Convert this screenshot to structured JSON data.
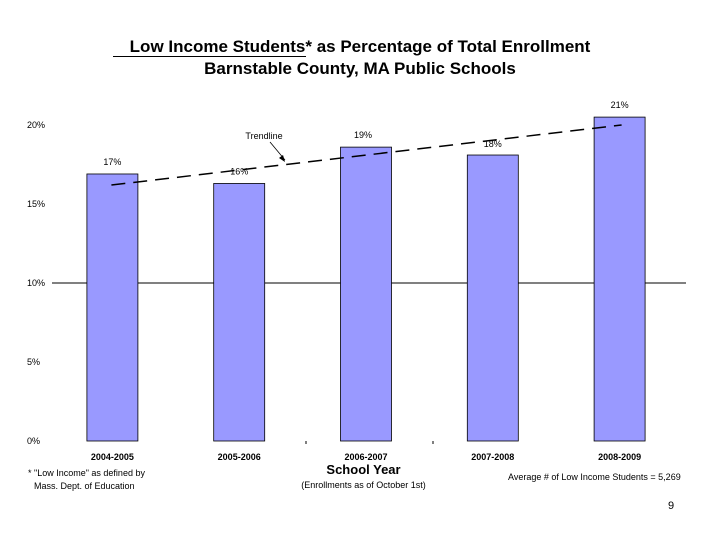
{
  "slide": {
    "title_line1_underlined": "Low Income Students*",
    "title_line1_rest": " as Percentage of Total Enrollment",
    "title_line2": "Barnstable County, MA Public Schools",
    "footnote_line1": "* \"Low Income\" as defined by",
    "footnote_line2": "Mass. Dept. of Education",
    "x_axis_subtitle": "(Enrollments as of October 1st)",
    "average_note": "Average # of Low Income Students = 5,269",
    "page_number": "9"
  },
  "colors": {
    "bar_fill": "#9999ff",
    "bar_stroke": "#000000",
    "trendline": "#000000",
    "gridline": "#000000"
  },
  "chart_data": {
    "type": "bar",
    "title": "Low Income Students* as Percentage of Total Enrollment",
    "subtitle": "Barnstable County, MA Public Schools",
    "xlabel": "School Year",
    "ylabel": "",
    "categories": [
      "2004-2005",
      "2005-2006",
      "2006-2007",
      "2007-2008",
      "2008-2009"
    ],
    "values": [
      16.9,
      16.3,
      18.6,
      18.1,
      20.5
    ],
    "data_labels": [
      "17%",
      "16%",
      "19%",
      "18%",
      "21%"
    ],
    "ylim": [
      0,
      20
    ],
    "yticks": [
      0,
      5,
      10,
      15,
      20
    ],
    "ytick_labels": [
      "0%",
      "5%",
      "10%",
      "15%",
      "20%"
    ],
    "grid": true,
    "legend": "none",
    "trendline": {
      "label": "Trendline",
      "style": "dashed",
      "start_value": 16.2,
      "end_value": 20.0
    }
  }
}
